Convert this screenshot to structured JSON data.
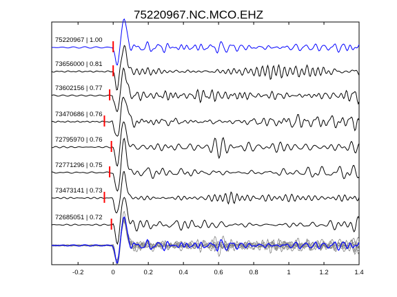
{
  "chart_data": {
    "type": "line",
    "title": "75220967.NC.MCO.EHZ",
    "xlabel": "",
    "ylabel": "",
    "xlim": [
      -0.35,
      1.4
    ],
    "x_ticks": [
      -0.2,
      0,
      0.2,
      0.4,
      0.6,
      0.8,
      1,
      1.2,
      1.4
    ],
    "x_tick_labels": [
      "-0.2",
      "0",
      "0.2",
      "0.4",
      "0.6",
      "0.8",
      "1",
      "1.2",
      "1.4"
    ],
    "grid": false,
    "colors": {
      "reference": "#0000ff",
      "trace": "#000000",
      "overlay": "#808080",
      "pick": "#ff0000"
    },
    "traces": [
      {
        "label": "75220967 | 1.00",
        "event_id": "75220967",
        "correlation": 1.0,
        "pick_time": 0.0,
        "color": "#0000ff"
      },
      {
        "label": "73656000 | 0.81",
        "event_id": "73656000",
        "correlation": 0.81,
        "pick_time": 0.0,
        "color": "#000000"
      },
      {
        "label": "73602156 | 0.77",
        "event_id": "73602156",
        "correlation": 0.77,
        "pick_time": -0.02,
        "color": "#000000"
      },
      {
        "label": "73470686 | 0.76",
        "event_id": "73470686",
        "correlation": 0.76,
        "pick_time": -0.05,
        "color": "#000000"
      },
      {
        "label": "72795970 | 0.76",
        "event_id": "72795970",
        "correlation": 0.76,
        "pick_time": -0.01,
        "color": "#000000"
      },
      {
        "label": "72771296 | 0.75",
        "event_id": "72771296",
        "correlation": 0.75,
        "pick_time": -0.02,
        "color": "#000000"
      },
      {
        "label": "73473141 | 0.73",
        "event_id": "73473141",
        "correlation": 0.73,
        "pick_time": -0.05,
        "color": "#000000"
      },
      {
        "label": "72685051 | 0.72",
        "event_id": "72685051",
        "correlation": 0.72,
        "pick_time": -0.01,
        "color": "#000000"
      }
    ],
    "stack": {
      "overlay_of_all_traces": true
    }
  }
}
